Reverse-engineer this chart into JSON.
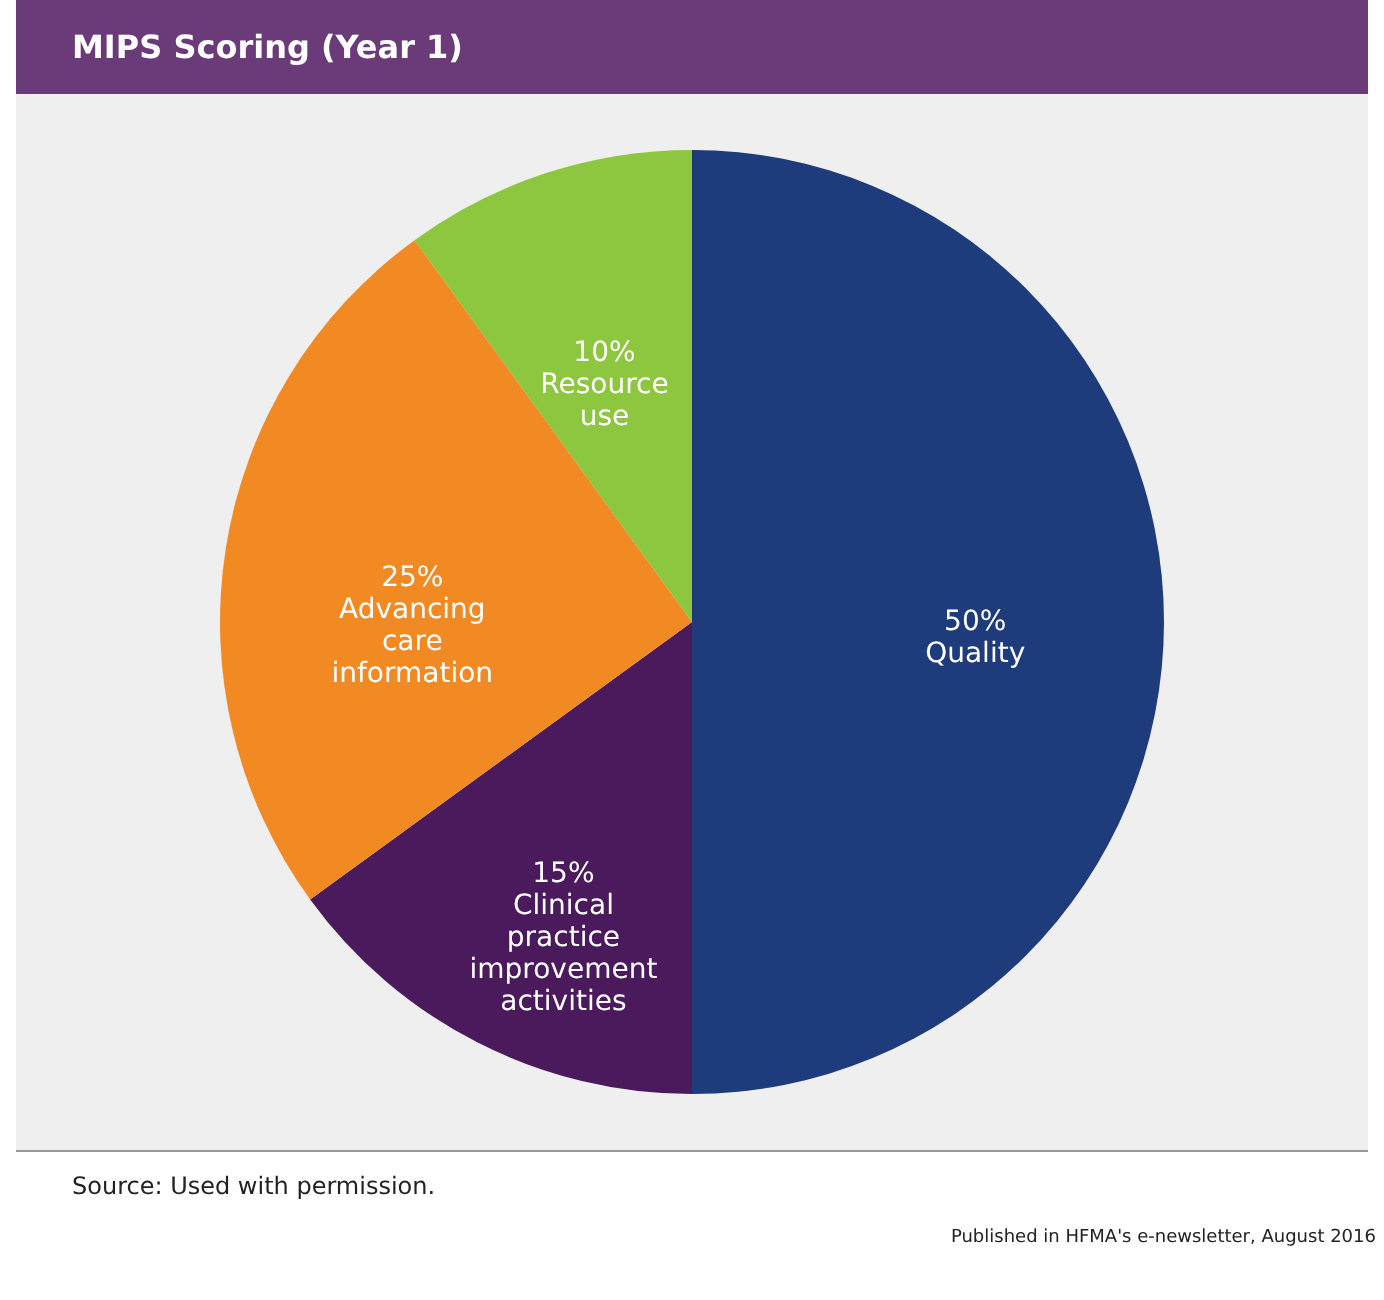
{
  "chart_data": {
    "type": "pie",
    "title": "MIPS Scoring (Year 1)",
    "categories": [
      "Quality",
      "Clinical practice improvement activities",
      "Advancing care information",
      "Resource use"
    ],
    "values": [
      50,
      15,
      25,
      10
    ],
    "value_labels": [
      "50%",
      "15%",
      "25%",
      "10%"
    ],
    "colors": [
      "#1e3c7c",
      "#4a1a5c",
      "#f28a24",
      "#8dc63f"
    ],
    "legend": false,
    "annotations": [
      "Source: Used with permission.",
      "Published in HFMA's e-newsletter, August 2016"
    ]
  }
}
